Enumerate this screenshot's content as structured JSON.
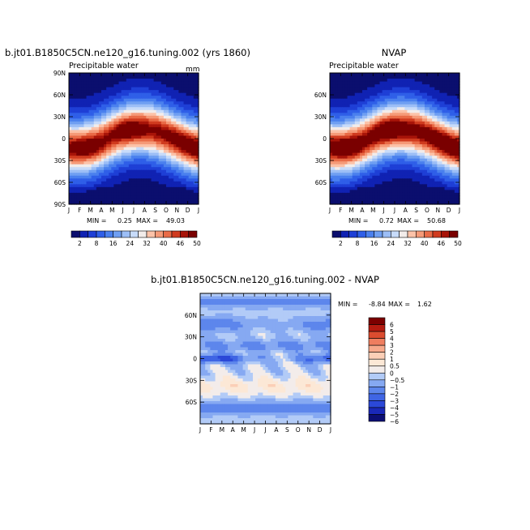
{
  "panels": {
    "model": {
      "title": "b.jt01.B1850C5CN.ne120_g16.tuning.002 (yrs 1860)",
      "variable": "Precipitable water",
      "units": "mm",
      "min_label": "MIN = ",
      "min_value": "0.25",
      "max_label": "MAX = ",
      "max_value": "49.03"
    },
    "obs": {
      "title": "NVAP",
      "variable": "Precipitable water",
      "min_label": "MIN = ",
      "min_value": "0.72",
      "max_label": "MAX = ",
      "max_value": "50.68"
    },
    "diff": {
      "title": "b.jt01.B1850C5CN.ne120_g16.tuning.002 - NVAP",
      "min_label": "MIN = ",
      "min_value": "-8.84",
      "max_label": "MAX = ",
      "max_value": "1.62"
    }
  },
  "colors": {
    "abs_scale": [
      "#0b0e6e",
      "#1022b3",
      "#1e3fd6",
      "#2f5fe8",
      "#4a80ee",
      "#6f9ff2",
      "#9cbef6",
      "#c7dbfa",
      "#f2ecea",
      "#fcc2a8",
      "#f59a78",
      "#e96b47",
      "#d03b1f",
      "#a81409",
      "#7a0000"
    ],
    "diff_scale": [
      "#0c0e74",
      "#1a28b8",
      "#2b48d8",
      "#3f65e4",
      "#5d86ec",
      "#86a9f2",
      "#b2cbf7",
      "#f3ecea",
      "#fce8d6",
      "#fbcfb7",
      "#f7a98b",
      "#ef7e5f",
      "#dc4c2f",
      "#b51b10",
      "#7c0000"
    ]
  },
  "chart_data": [
    {
      "type": "heatmap",
      "title": "b.jt01.B1850C5CN.ne120_g16.tuning.002 (yrs 1860)",
      "subtitle": "Precipitable water",
      "units": "mm",
      "x": [
        "J",
        "F",
        "M",
        "A",
        "M",
        "J",
        "J",
        "A",
        "S",
        "O",
        "N",
        "D",
        "J"
      ],
      "y_ticks": [
        "90N",
        "60N",
        "30N",
        "0",
        "30S",
        "60S",
        "90S"
      ],
      "y_range": [
        -90,
        90
      ],
      "levels": [
        2,
        5,
        8,
        12,
        16,
        20,
        24,
        28,
        32,
        36,
        40,
        43,
        46,
        48,
        50
      ],
      "colorbar_labels": [
        "2",
        "8",
        "16",
        "24",
        "32",
        "40",
        "46",
        "50"
      ],
      "min": 0.25,
      "max": 49.03
    },
    {
      "type": "heatmap",
      "title": "NVAP",
      "subtitle": "Precipitable water",
      "x": [
        "J",
        "F",
        "M",
        "A",
        "M",
        "J",
        "J",
        "A",
        "S",
        "O",
        "N",
        "D",
        "J"
      ],
      "y_ticks": [
        "60N",
        "30N",
        "0",
        "30S",
        "60S"
      ],
      "y_range": [
        -90,
        90
      ],
      "levels": [
        2,
        5,
        8,
        12,
        16,
        20,
        24,
        28,
        32,
        36,
        40,
        43,
        46,
        48,
        50
      ],
      "colorbar_labels": [
        "2",
        "8",
        "16",
        "24",
        "32",
        "40",
        "46",
        "50"
      ],
      "min": 0.72,
      "max": 50.68
    },
    {
      "type": "heatmap",
      "title": "b.jt01.B1850C5CN.ne120_g16.tuning.002 - NVAP",
      "x": [
        "J",
        "F",
        "M",
        "A",
        "M",
        "J",
        "J",
        "A",
        "S",
        "O",
        "N",
        "D",
        "J"
      ],
      "y_ticks": [
        "60N",
        "30N",
        "0",
        "30S",
        "60S"
      ],
      "y_range": [
        -90,
        90
      ],
      "levels": [
        -6,
        -5,
        -4,
        -3,
        -2,
        -1,
        -0.5,
        0,
        0.5,
        1,
        2,
        3,
        4,
        5,
        6
      ],
      "colorbar_labels": [
        "6",
        "5",
        "4",
        "3",
        "2",
        "1",
        "0.5",
        "0",
        "−0.5",
        "−1",
        "−2",
        "−3",
        "−4",
        "−5",
        "−6"
      ],
      "min": -8.84,
      "max": 1.62
    }
  ]
}
